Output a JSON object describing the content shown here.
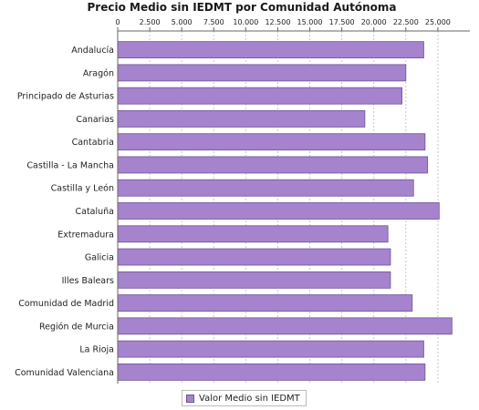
{
  "chart_data": {
    "type": "bar",
    "orientation": "horizontal",
    "title": "Precio Medio sin IEDMT por Comunidad Autónoma",
    "xlabel": "",
    "ylabel": "",
    "xlim": [
      0,
      27500
    ],
    "x_ticks": [
      "0",
      "2.500",
      "5.000",
      "7.500",
      "10.000",
      "12.500",
      "15.000",
      "17.500",
      "20.000",
      "22.500",
      "25.000"
    ],
    "x_tick_values": [
      0,
      2500,
      5000,
      7500,
      10000,
      12500,
      15000,
      17500,
      20000,
      22500,
      25000
    ],
    "grid": true,
    "legend_position": "bottom",
    "categories": [
      "Andalucía",
      "Aragón",
      "Principado de Asturias",
      "Canarias",
      "Cantabria",
      "Castilla - La Mancha",
      "Castilla y León",
      "Cataluña",
      "Extremadura",
      "Galicia",
      "Illes Balears",
      "Comunidad de Madrid",
      "Región de Murcia",
      "La Rioja",
      "Comunidad Valenciana"
    ],
    "series": [
      {
        "name": "Valor Medio sin IEDMT",
        "color": "#a583cd",
        "values": [
          23900,
          22500,
          22200,
          19300,
          24000,
          24200,
          23100,
          25100,
          21100,
          21300,
          21300,
          23000,
          26100,
          23900,
          24000
        ]
      }
    ]
  }
}
